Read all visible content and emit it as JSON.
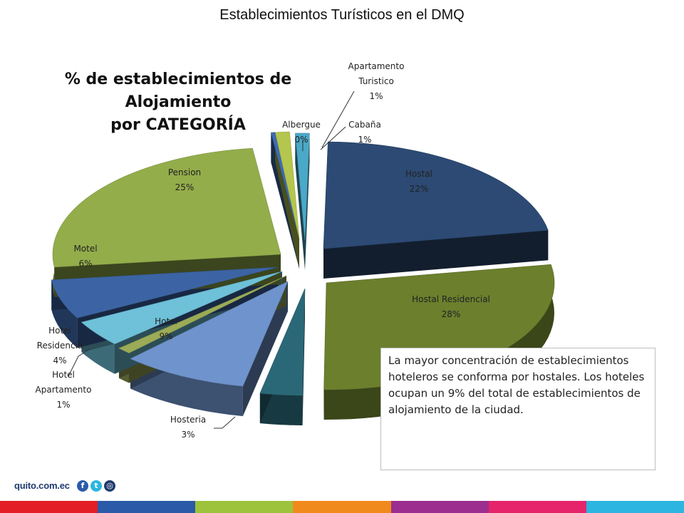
{
  "page_title": "Establecimientos Turísticos en el DMQ",
  "chart_data": {
    "type": "pie",
    "title_lines": [
      "% de establecimientos de Alojamiento",
      "por CATEGORÍA"
    ],
    "slices": [
      {
        "label": "Hostal",
        "value": 22,
        "display": "22%",
        "color": "#2c4a73"
      },
      {
        "label": "Hostal Residencial",
        "value": 28,
        "display": "28%",
        "color": "#6b7f2d"
      },
      {
        "label": "Hosteria",
        "value": 3,
        "display": "3%",
        "color": "#2a6878"
      },
      {
        "label": "Hotel",
        "value": 9,
        "display": "9%",
        "color": "#6f93cc"
      },
      {
        "label": "Hotel Apartamento",
        "value": 1,
        "display": "1%",
        "color": "#9bab57"
      },
      {
        "label": "Hotel Residencia",
        "value": 4,
        "display": "4%",
        "color": "#6ec1d8"
      },
      {
        "label": "Motel",
        "value": 6,
        "display": "6%",
        "color": "#3c64a4"
      },
      {
        "label": "Pension",
        "value": 25,
        "display": "25%",
        "color": "#93ad4b"
      },
      {
        "label": "Albergue",
        "value": 0,
        "display": "0%",
        "color": "#3d6bb0"
      },
      {
        "label": "Apartamento Turistico",
        "value": 1,
        "display": "1%",
        "color": "#b5c64e"
      },
      {
        "label": "Cabaña",
        "value": 1,
        "display": "1%",
        "color": "#4aa8c8"
      }
    ]
  },
  "note": "La mayor concentración de establecimientos hoteleros se conforma por hostales. Los hoteles ocupan un 9% del total de establecimientos de alojamiento de la ciudad.",
  "footer": {
    "site": "quito.com.ec",
    "social_icons": [
      "facebook-icon",
      "twitter-icon",
      "instagram-icon"
    ],
    "stripe_colors": [
      "#e31e24",
      "#2a5aa8",
      "#9dc33c",
      "#f08a1c",
      "#9b2e8e",
      "#e5246b",
      "#2bb5e0"
    ]
  }
}
